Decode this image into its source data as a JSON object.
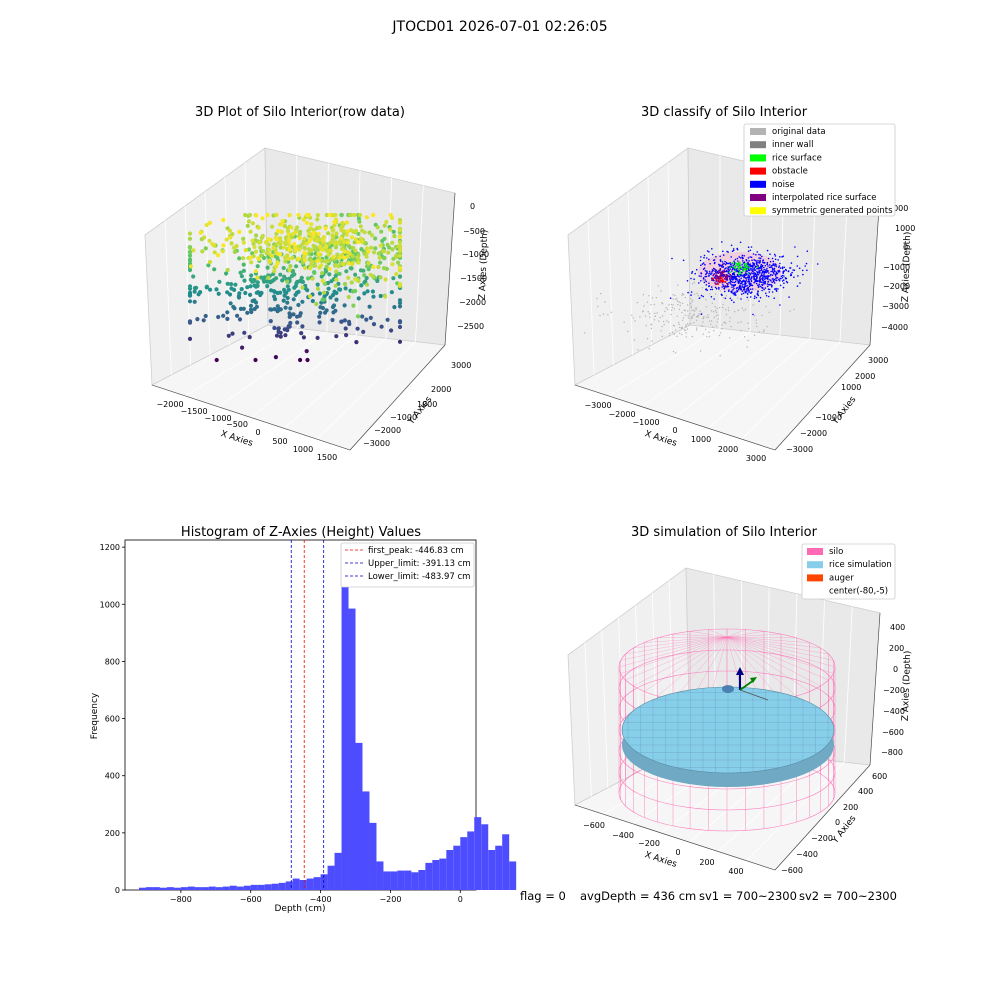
{
  "suptitle": "JTOCD01 2026-07-01 02:26:05",
  "chart_data": [
    {
      "type": "scatter",
      "title": "3D Plot of Silo Interior(row data)",
      "xlabel": "X Axies",
      "ylabel": "Y Axies",
      "zlabel": "Z Axies (Depth)",
      "x_ticks": [
        "−2000",
        "−1500",
        "−1000",
        "−500",
        "0",
        "500",
        "1000",
        "1500"
      ],
      "y_ticks": [
        "3000",
        "2000",
        "1000",
        "−1000",
        "−2000",
        "−3000"
      ],
      "z_ticks": [
        "0",
        "−500",
        "−1000",
        "−1500",
        "−2000",
        "−2500"
      ],
      "xlim": [
        -2200,
        1600
      ],
      "ylim": [
        -3300,
        3300
      ],
      "zlim": [
        -2800,
        100
      ],
      "colormap": "viridis",
      "grid": true
    },
    {
      "type": "scatter",
      "title": "3D classify of Silo Interior",
      "xlabel": "X Axies",
      "ylabel": "Y Axies",
      "zlabel": "Z Axies (Depth)",
      "x_ticks": [
        "−3000",
        "−2000",
        "−1000",
        "0",
        "1000",
        "2000",
        "3000"
      ],
      "y_ticks": [
        "3000",
        "2000",
        "1000",
        "−1000",
        "−2000",
        "−3000"
      ],
      "z_ticks": [
        "1000",
        "0",
        "−1000",
        "−2000",
        "−3000",
        "−4000"
      ],
      "z_ticks_hidden": [
        "2000"
      ],
      "legend_position": "top-right",
      "legend": [
        {
          "name": "original data",
          "color": "#b3b3b3"
        },
        {
          "name": "inner wall",
          "color": "#808080"
        },
        {
          "name": "rice surface",
          "color": "#00ff00"
        },
        {
          "name": "obstacle",
          "color": "#ff0000"
        },
        {
          "name": "noise",
          "color": "#0000ff"
        },
        {
          "name": "interpolated rice surface",
          "color": "#800080"
        },
        {
          "name": "symmetric generated points",
          "color": "#ffff00"
        }
      ],
      "grid": true
    },
    {
      "type": "bar",
      "title": "Histogram of Z-Axies (Height) Values",
      "xlabel": "Depth (cm)",
      "ylabel": "Frequency",
      "x_ticks": [
        "−800",
        "−600",
        "−400",
        "−200",
        "0"
      ],
      "y_ticks": [
        "0",
        "200",
        "400",
        "600",
        "800",
        "1000",
        "1200"
      ],
      "xlim": [
        -960,
        45
      ],
      "ylim": [
        0,
        1225
      ],
      "bar_color": "#4d4dff",
      "bin_width": 20,
      "bins_start": -920,
      "values": [
        8,
        10,
        10,
        8,
        10,
        8,
        10,
        12,
        10,
        10,
        12,
        10,
        12,
        15,
        12,
        15,
        18,
        18,
        20,
        22,
        25,
        30,
        40,
        35,
        40,
        45,
        55,
        85,
        130,
        1160,
        985,
        515,
        345,
        235,
        100,
        65,
        65,
        68,
        68,
        62,
        70,
        95,
        105,
        110,
        140,
        155,
        185,
        205,
        255,
        230,
        140,
        155,
        195,
        100
      ],
      "lines": [
        {
          "label": "first_peak: -446.83 cm",
          "x": -446.83,
          "color": "#ff0000"
        },
        {
          "label": "Upper_limit: -391.13 cm",
          "x": -391.13,
          "color": "#0000cc"
        },
        {
          "label": "Lower_limit: -483.97 cm",
          "x": -483.97,
          "color": "#0000cc"
        }
      ],
      "legend_position": "top-right",
      "grid": false
    },
    {
      "type": "scatter",
      "title": "3D simulation of Silo Interior",
      "xlabel": "X Axies",
      "ylabel": "Y Axies",
      "zlabel": "Z Axies (Depth)",
      "x_ticks": [
        "−600",
        "−400",
        "−200",
        "0",
        "200",
        "400"
      ],
      "y_ticks": [
        "600",
        "400",
        "200",
        "0",
        "−200",
        "−400",
        "−600"
      ],
      "z_ticks": [
        "400",
        "200",
        "0",
        "−200",
        "−400",
        "−600",
        "−800"
      ],
      "legend_position": "top-right",
      "legend": [
        {
          "name": "silo",
          "color": "#ff69b4"
        },
        {
          "name": "rice simulation",
          "color": "#87ceeb"
        },
        {
          "name": "auger",
          "color": "#ff4500"
        },
        {
          "name": "center(-80,-5)",
          "color": "#ffffff"
        }
      ],
      "grid": true
    }
  ],
  "footer": {
    "flag": "flag = 0",
    "avg": "avgDepth = 436 cm",
    "sv1": "sv1 = 700~2300",
    "sv2": "sv2 = 700~2300"
  }
}
